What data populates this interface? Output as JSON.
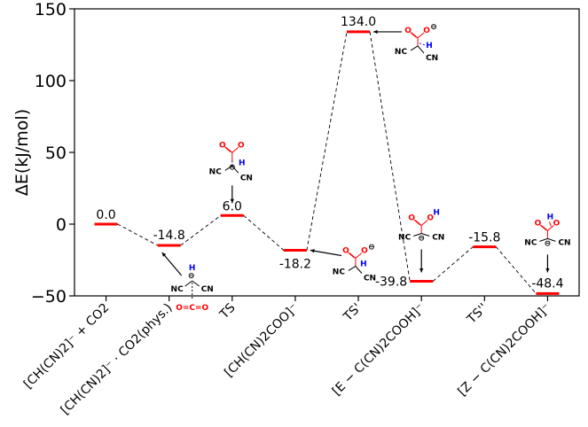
{
  "chart_data": {
    "type": "energy-level-diagram",
    "title": "",
    "xlabel": "",
    "ylabel": "ΔE(kJ/mol)",
    "ylim": [
      -50,
      150
    ],
    "yticks": [
      -50,
      0,
      50,
      100,
      150
    ],
    "ytick_labels": [
      "−50",
      "0",
      "50",
      "100",
      "150"
    ],
    "grid": false,
    "level_color": "#ff0000",
    "connector_style": "dashed",
    "levels": [
      {
        "category": "[CH(CN)2]⁻ + CO2",
        "value": 0.0,
        "label": "0.0"
      },
      {
        "category": "[CH(CN)2]⁻ · CO2(phys.)",
        "value": -14.8,
        "label": "-14.8"
      },
      {
        "category": "TS",
        "value": 6.0,
        "label": "6.0"
      },
      {
        "category": "[CH(CN)2COO]⁻",
        "value": -18.2,
        "label": "-18.2"
      },
      {
        "category": "TS'",
        "value": 134.0,
        "label": "134.0"
      },
      {
        "category": "[E − C(CN)2COOH]⁻",
        "value": -39.8,
        "label": "-39.8"
      },
      {
        "category": "TS''",
        "value": -15.8,
        "label": "-15.8"
      },
      {
        "category": "[Z − C(CN)2COOH]⁻",
        "value": -48.4,
        "label": "-48.4"
      }
    ]
  },
  "structure_text": {
    "o": "O",
    "c": "C",
    "h": "H",
    "cn": "NC",
    "cn_r": "CN",
    "minus": "⊖",
    "co2": "O=C=O"
  }
}
